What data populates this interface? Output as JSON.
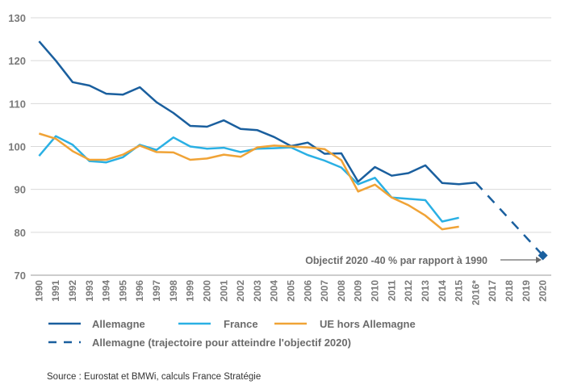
{
  "chart_data": {
    "type": "line",
    "title": "",
    "xlabel": "",
    "ylabel": "",
    "ylim": [
      70,
      130
    ],
    "yticks": [
      "130",
      "120",
      "110",
      "100",
      "90",
      "80",
      "70"
    ],
    "categories": [
      "1990",
      "1991",
      "1992",
      "1993",
      "1994",
      "1995",
      "1996",
      "1997",
      "1998",
      "1999",
      "2000",
      "2001",
      "2002",
      "2003",
      "2004",
      "2005",
      "2006",
      "2007",
      "2008",
      "2009",
      "2010",
      "2011",
      "2012",
      "2013",
      "2014",
      "2015",
      "2016*",
      "2017",
      "2018",
      "2019",
      "2020"
    ],
    "grid": "horizontal",
    "legend_position": "bottom",
    "series": [
      {
        "name": "Allemagne",
        "color": "#1a5f9e",
        "style": "solid",
        "values": [
          124.5,
          120,
          115,
          114.2,
          112.3,
          112.1,
          113.8,
          110.3,
          107.8,
          104.8,
          104.6,
          106.1,
          104.1,
          103.8,
          102.2,
          100.1,
          100.9,
          98.3,
          98.4,
          91.8,
          95.2,
          93.2,
          93.8,
          95.6,
          91.5,
          91.2,
          91.6,
          null,
          null,
          null,
          null
        ]
      },
      {
        "name": "France",
        "color": "#2ab0e4",
        "style": "solid",
        "values": [
          97.8,
          102.4,
          100.4,
          96.6,
          96.3,
          97.5,
          100.4,
          99.2,
          102.1,
          100,
          99.5,
          99.7,
          98.7,
          99.5,
          99.6,
          99.8,
          98,
          96.7,
          95.1,
          91.2,
          92.7,
          88.1,
          87.8,
          87.5,
          82.5,
          83.4,
          null,
          null,
          null,
          null,
          null
        ]
      },
      {
        "name": "UE hors Allemagne",
        "color": "#f0a336",
        "style": "solid",
        "values": [
          103,
          101.8,
          98.9,
          96.9,
          96.9,
          98.1,
          100.2,
          98.7,
          98.6,
          96.9,
          97.2,
          98.1,
          97.6,
          99.8,
          100.2,
          100,
          99.8,
          99.4,
          96.8,
          89.5,
          91.1,
          88.1,
          86.3,
          83.9,
          80.7,
          81.3,
          null,
          null,
          null,
          null,
          null
        ]
      },
      {
        "name": "Allemagne (trajectoire pour atteindre l'objectif 2020)",
        "color": "#1a5f9e",
        "style": "dashed",
        "values": [
          null,
          null,
          null,
          null,
          null,
          null,
          null,
          null,
          null,
          null,
          null,
          null,
          null,
          null,
          null,
          null,
          null,
          null,
          null,
          null,
          null,
          null,
          null,
          null,
          null,
          null,
          91.6,
          null,
          null,
          null,
          74.6
        ]
      }
    ],
    "annotations": [
      {
        "text": "Objectif 2020 -40 % par rapport à 1990",
        "category": "2020",
        "value": 74.6
      }
    ]
  },
  "legend": {
    "allemagne": "Allemagne",
    "france": "France",
    "ue": "UE hors Allemagne",
    "trajectoire": "Allemagne (trajectoire pour atteindre l'objectif 2020)"
  },
  "source": "Source : Eurostat et BMWi, calculs France Stratégie"
}
